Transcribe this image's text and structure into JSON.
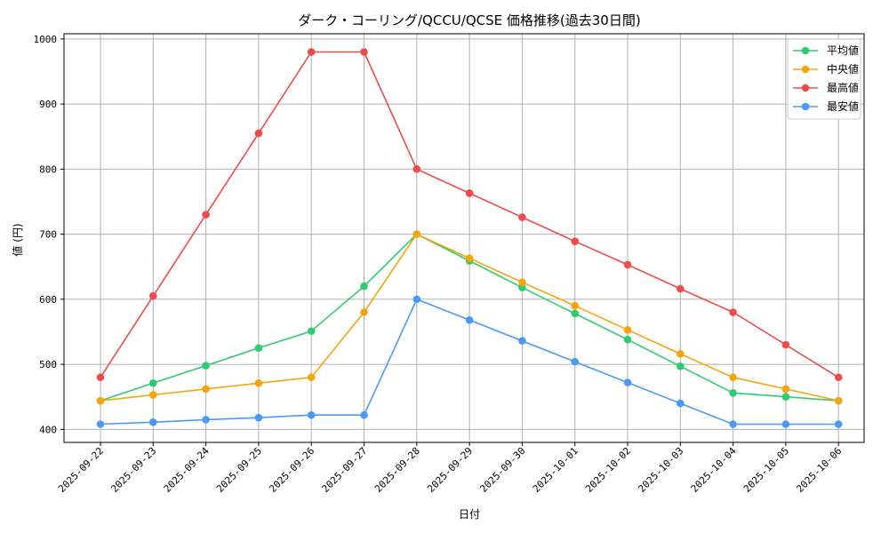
{
  "chart_data": {
    "type": "line",
    "title": "ダーク・コーリング/QCCU/QCSE 価格推移(過去30日間)",
    "xlabel": "日付",
    "ylabel": "値 (円)",
    "categories": [
      "2025-09-22",
      "2025-09-23",
      "2025-09-24",
      "2025-09-25",
      "2025-09-26",
      "2025-09-27",
      "2025-09-28",
      "2025-09-29",
      "2025-09-30",
      "2025-10-01",
      "2025-10-02",
      "2025-10-03",
      "2025-10-04",
      "2025-10-05",
      "2025-10-06"
    ],
    "yticks": [
      400,
      500,
      600,
      700,
      800,
      900,
      1000
    ],
    "ylim": [
      380,
      1008
    ],
    "grid": true,
    "legend_position": "top-right",
    "series": [
      {
        "name": "平均値",
        "color": "#2ecc71",
        "values": [
          444,
          471,
          498,
          525,
          551,
          620,
          700,
          659,
          618,
          578,
          538,
          497,
          456,
          450,
          444
        ]
      },
      {
        "name": "中央値",
        "color": "#f5a50a",
        "values": [
          444,
          453,
          462,
          471,
          480,
          580,
          700,
          663,
          626,
          590,
          553,
          516,
          480,
          462,
          444
        ]
      },
      {
        "name": "最高値",
        "color": "#ef4b4b",
        "values": [
          480,
          605,
          730,
          855,
          980,
          980,
          800,
          763,
          726,
          689,
          653,
          616,
          580,
          530,
          480
        ]
      },
      {
        "name": "最安値",
        "color": "#4a9af5",
        "values": [
          408,
          411,
          415,
          418,
          422,
          422,
          600,
          568,
          536,
          504,
          472,
          440,
          408,
          408,
          408
        ]
      }
    ]
  }
}
